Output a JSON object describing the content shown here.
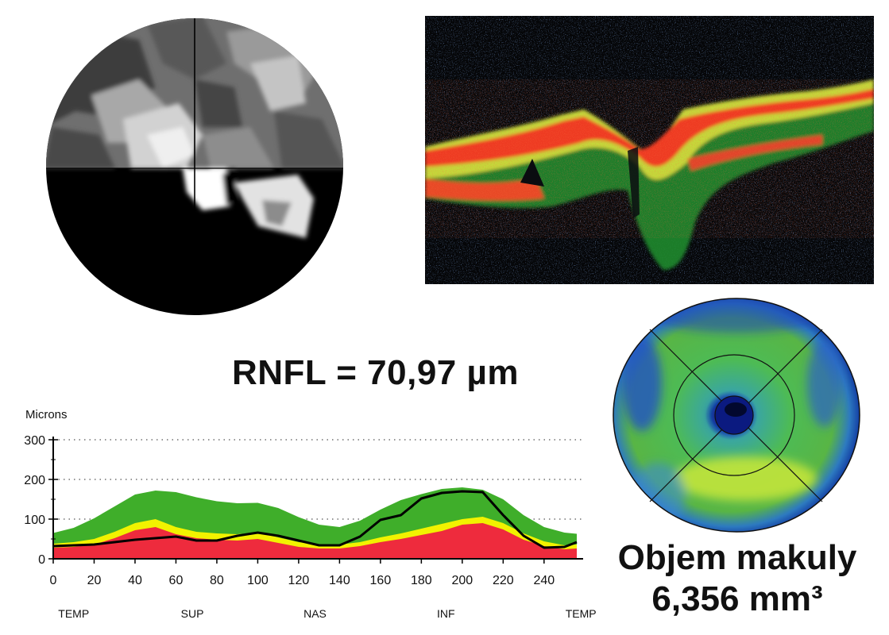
{
  "rnfl_label": "RNFL = 70,97 µm",
  "macula_volume": {
    "title": "Objem makuly",
    "value": "6,356 mm³"
  },
  "colors": {
    "normal_band": "#3fae2a",
    "borderline_band": "#f2f200",
    "abnormal_band": "#ee2b3d",
    "patient_curve": "#000000"
  },
  "chart_data": {
    "type": "area",
    "ylabel": "Microns",
    "xlim": [
      0,
      256
    ],
    "ylim": [
      0,
      300
    ],
    "x_ticks": [
      0,
      20,
      40,
      60,
      80,
      100,
      120,
      140,
      160,
      180,
      200,
      220,
      240
    ],
    "y_ticks": [
      0,
      100,
      200,
      300
    ],
    "grid": "dotted horizontal at 100, 200, 300",
    "sector_labels": [
      {
        "label": "TEMP",
        "x": 10
      },
      {
        "label": "SUP",
        "x": 68
      },
      {
        "label": "NAS",
        "x": 128
      },
      {
        "label": "INF",
        "x": 192
      },
      {
        "label": "TEMP",
        "x": 258
      }
    ],
    "x": [
      0,
      10,
      20,
      30,
      40,
      50,
      60,
      70,
      80,
      90,
      100,
      110,
      120,
      130,
      140,
      150,
      160,
      170,
      180,
      190,
      200,
      210,
      220,
      230,
      240,
      250,
      256
    ],
    "series": [
      {
        "values": [
          28,
          30,
          36,
          52,
          72,
          80,
          62,
          52,
          48,
          46,
          50,
          40,
          30,
          26,
          26,
          32,
          42,
          50,
          60,
          70,
          86,
          90,
          74,
          48,
          32,
          24,
          26
        ]
      },
      {
        "values": [
          38,
          42,
          50,
          68,
          90,
          100,
          80,
          68,
          64,
          62,
          66,
          54,
          42,
          36,
          36,
          42,
          54,
          64,
          76,
          88,
          100,
          106,
          90,
          64,
          44,
          34,
          36
        ]
      },
      {
        "values": [
          65,
          78,
          102,
          132,
          162,
          172,
          168,
          155,
          145,
          140,
          141,
          128,
          105,
          86,
          80,
          96,
          124,
          148,
          163,
          176,
          180,
          174,
          150,
          110,
          80,
          66,
          63
        ]
      },
      {
        "values": [
          32,
          34,
          36,
          42,
          48,
          52,
          56,
          46,
          46,
          58,
          66,
          58,
          46,
          34,
          34,
          56,
          98,
          110,
          152,
          166,
          170,
          168,
          110,
          58,
          28,
          30,
          42
        ]
      }
    ]
  }
}
